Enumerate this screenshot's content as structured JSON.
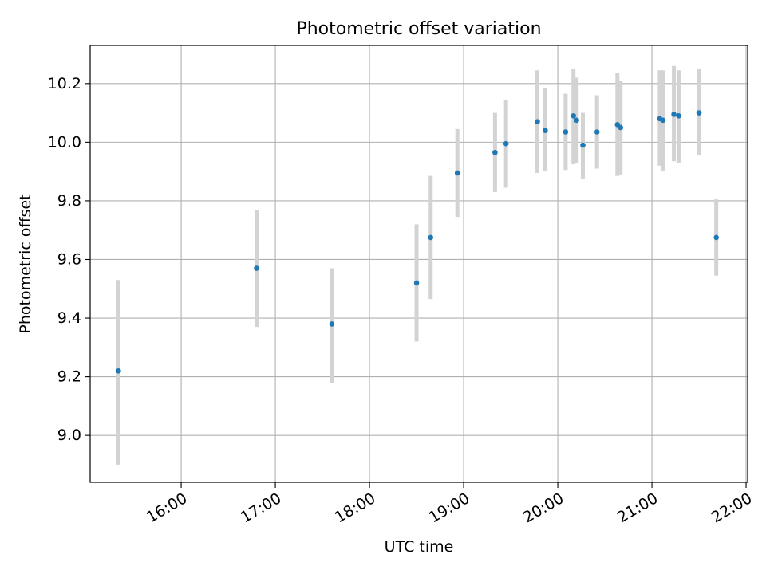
{
  "chart_data": {
    "type": "scatter",
    "title": "Photometric offset variation",
    "xlabel": "UTC time",
    "ylabel": "Photometric offset",
    "x_ticks": [
      "16:00",
      "17:00",
      "18:00",
      "19:00",
      "20:00",
      "21:00",
      "22:00"
    ],
    "y_ticks": [
      "9.0",
      "9.2",
      "9.4",
      "9.6",
      "9.8",
      "10.0",
      "10.2"
    ],
    "xlim": [
      "15:02",
      "22:01"
    ],
    "ylim": [
      8.84,
      10.33
    ],
    "grid": true,
    "errorbar_color": "#d3d3d3",
    "marker_color": "#1f77b4",
    "points": [
      {
        "t": "15:20",
        "y": 9.22,
        "lo": 8.9,
        "hi": 9.53
      },
      {
        "t": "16:48",
        "y": 9.57,
        "lo": 9.37,
        "hi": 9.77
      },
      {
        "t": "17:36",
        "y": 9.38,
        "lo": 9.18,
        "hi": 9.57
      },
      {
        "t": "18:30",
        "y": 9.52,
        "lo": 9.32,
        "hi": 9.72
      },
      {
        "t": "18:39",
        "y": 9.675,
        "lo": 9.465,
        "hi": 9.885
      },
      {
        "t": "18:56",
        "y": 9.895,
        "lo": 9.745,
        "hi": 10.045
      },
      {
        "t": "19:20",
        "y": 9.965,
        "lo": 9.83,
        "hi": 10.1
      },
      {
        "t": "19:27",
        "y": 9.995,
        "lo": 9.845,
        "hi": 10.145
      },
      {
        "t": "19:47",
        "y": 10.07,
        "lo": 9.895,
        "hi": 10.245
      },
      {
        "t": "19:52",
        "y": 10.04,
        "lo": 9.9,
        "hi": 10.185
      },
      {
        "t": "20:05",
        "y": 10.035,
        "lo": 9.905,
        "hi": 10.165
      },
      {
        "t": "20:10",
        "y": 10.09,
        "lo": 9.925,
        "hi": 10.25
      },
      {
        "t": "20:12",
        "y": 10.075,
        "lo": 9.93,
        "hi": 10.22
      },
      {
        "t": "20:16",
        "y": 9.99,
        "lo": 9.875,
        "hi": 10.1
      },
      {
        "t": "20:25",
        "y": 10.035,
        "lo": 9.91,
        "hi": 10.16
      },
      {
        "t": "20:38",
        "y": 10.06,
        "lo": 9.885,
        "hi": 10.235
      },
      {
        "t": "20:40",
        "y": 10.05,
        "lo": 9.89,
        "hi": 10.21
      },
      {
        "t": "21:05",
        "y": 10.08,
        "lo": 9.92,
        "hi": 10.245
      },
      {
        "t": "21:07",
        "y": 10.075,
        "lo": 9.9,
        "hi": 10.245
      },
      {
        "t": "21:14",
        "y": 10.095,
        "lo": 9.935,
        "hi": 10.26
      },
      {
        "t": "21:17",
        "y": 10.09,
        "lo": 9.93,
        "hi": 10.245
      },
      {
        "t": "21:30",
        "y": 10.1,
        "lo": 9.955,
        "hi": 10.25
      },
      {
        "t": "21:41",
        "y": 9.675,
        "lo": 9.545,
        "hi": 9.805
      }
    ]
  }
}
